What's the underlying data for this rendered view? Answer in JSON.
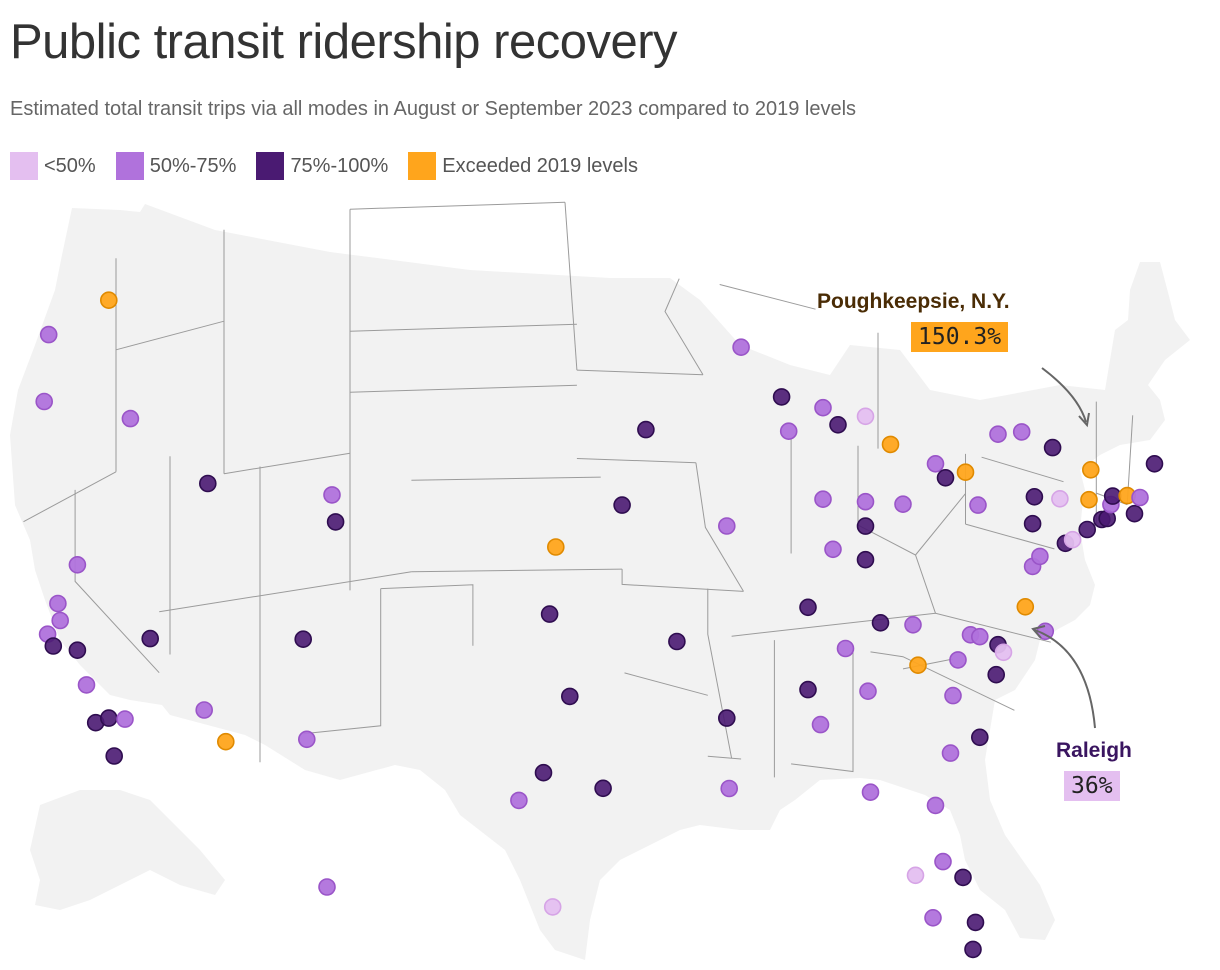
{
  "title": "Public transit ridership recovery",
  "subtitle": "Estimated total transit trips via all modes in August or September 2023 compared to 2019 levels",
  "legend": [
    {
      "label": "<50%",
      "color": "#e4bff0"
    },
    {
      "label": "50%-75%",
      "color": "#b072dc"
    },
    {
      "label": "75%-100%",
      "color": "#4a1a72"
    },
    {
      "label": "Exceeded 2019 levels",
      "color": "#ffa51c"
    }
  ],
  "colors": {
    "land": "#f2f2f2",
    "border": "#9b9b9b",
    "lt50": "#e4bff0",
    "p50_75": "#b072dc",
    "p75_100": "#4a1a72",
    "exceeded": "#ffa51c"
  },
  "callouts": {
    "poughkeepsie": {
      "name": "Poughkeepsie, N.Y.",
      "value": "150.3%"
    },
    "raleigh": {
      "name": "Raleigh",
      "value": "36%"
    }
  },
  "cities": [
    {
      "lon": -122.3,
      "lat": 47.6,
      "cat": "p50_75"
    },
    {
      "lon": -117.4,
      "lat": 47.7,
      "cat": "exceeded"
    },
    {
      "lon": -122.7,
      "lat": 45.5,
      "cat": "p50_75"
    },
    {
      "lon": -116.2,
      "lat": 43.6,
      "cat": "p50_75"
    },
    {
      "lon": -119.8,
      "lat": 39.5,
      "cat": "p50_75"
    },
    {
      "lon": -121.5,
      "lat": 38.6,
      "cat": "p50_75"
    },
    {
      "lon": -122.4,
      "lat": 37.8,
      "cat": "p50_75"
    },
    {
      "lon": -121.3,
      "lat": 38.0,
      "cat": "p50_75"
    },
    {
      "lon": -121.9,
      "lat": 37.3,
      "cat": "p75_100"
    },
    {
      "lon": -119.8,
      "lat": 36.7,
      "cat": "p75_100"
    },
    {
      "lon": -119.0,
      "lat": 35.4,
      "cat": "p50_75"
    },
    {
      "lon": -118.2,
      "lat": 34.0,
      "cat": "p75_100"
    },
    {
      "lon": -117.4,
      "lat": 34.0,
      "cat": "p75_100"
    },
    {
      "lon": -116.5,
      "lat": 33.8,
      "cat": "p50_75"
    },
    {
      "lon": -117.1,
      "lat": 32.7,
      "cat": "p75_100"
    },
    {
      "lon": -115.1,
      "lat": 36.2,
      "cat": "p75_100"
    },
    {
      "lon": -111.9,
      "lat": 40.8,
      "cat": "p75_100"
    },
    {
      "lon": -112.1,
      "lat": 33.4,
      "cat": "p50_75"
    },
    {
      "lon": -110.9,
      "lat": 32.2,
      "cat": "exceeded"
    },
    {
      "lon": -106.6,
      "lat": 35.1,
      "cat": "p75_100"
    },
    {
      "lon": -106.4,
      "lat": 31.8,
      "cat": "p50_75"
    },
    {
      "lon": -104.8,
      "lat": 38.8,
      "cat": "p75_100"
    },
    {
      "lon": -105.0,
      "lat": 39.7,
      "cat": "p50_75"
    },
    {
      "lon": -97.3,
      "lat": 37.7,
      "cat": "exceeded"
    },
    {
      "lon": -97.5,
      "lat": 35.5,
      "cat": "p75_100"
    },
    {
      "lon": -96.8,
      "lat": 32.8,
      "cat": "p75_100"
    },
    {
      "lon": -97.7,
      "lat": 30.3,
      "cat": "p75_100"
    },
    {
      "lon": -98.5,
      "lat": 29.4,
      "cat": "p50_75"
    },
    {
      "lon": -95.4,
      "lat": 29.8,
      "cat": "p75_100"
    },
    {
      "lon": -97.4,
      "lat": 25.9,
      "cat": "lt50"
    },
    {
      "lon": -94.6,
      "lat": 39.1,
      "cat": "p75_100"
    },
    {
      "lon": -93.6,
      "lat": 41.6,
      "cat": "p75_100"
    },
    {
      "lon": -92.3,
      "lat": 34.7,
      "cat": "p75_100"
    },
    {
      "lon": -90.2,
      "lat": 32.3,
      "cat": "p75_100"
    },
    {
      "lon": -90.1,
      "lat": 30.0,
      "cat": "p50_75"
    },
    {
      "lon": -90.2,
      "lat": 38.6,
      "cat": "p50_75"
    },
    {
      "lon": -89.6,
      "lat": 44.5,
      "cat": "p50_75"
    },
    {
      "lon": -87.9,
      "lat": 43.0,
      "cat": "p75_100"
    },
    {
      "lon": -87.6,
      "lat": 41.9,
      "cat": "p50_75"
    },
    {
      "lon": -86.2,
      "lat": 42.8,
      "cat": "p50_75"
    },
    {
      "lon": -85.6,
      "lat": 42.3,
      "cat": "p75_100"
    },
    {
      "lon": -84.5,
      "lat": 42.7,
      "cat": "lt50"
    },
    {
      "lon": -83.5,
      "lat": 41.9,
      "cat": "exceeded"
    },
    {
      "lon": -81.7,
      "lat": 41.5,
      "cat": "p50_75"
    },
    {
      "lon": -81.3,
      "lat": 41.1,
      "cat": "p75_100"
    },
    {
      "lon": -80.5,
      "lat": 41.4,
      "cat": "exceeded"
    },
    {
      "lon": -80.0,
      "lat": 40.4,
      "cat": "p50_75"
    },
    {
      "lon": -86.2,
      "lat": 39.8,
      "cat": "p50_75"
    },
    {
      "lon": -84.5,
      "lat": 39.9,
      "cat": "p50_75"
    },
    {
      "lon": -83.0,
      "lat": 40.0,
      "cat": "p50_75"
    },
    {
      "lon": -84.5,
      "lat": 39.1,
      "cat": "p75_100"
    },
    {
      "lon": -85.8,
      "lat": 38.2,
      "cat": "p50_75"
    },
    {
      "lon": -84.5,
      "lat": 38.0,
      "cat": "p75_100"
    },
    {
      "lon": -86.8,
      "lat": 36.2,
      "cat": "p75_100"
    },
    {
      "lon": -83.9,
      "lat": 36.0,
      "cat": "p75_100"
    },
    {
      "lon": -85.3,
      "lat": 35.0,
      "cat": "p50_75"
    },
    {
      "lon": -86.8,
      "lat": 33.5,
      "cat": "p75_100"
    },
    {
      "lon": -86.3,
      "lat": 32.4,
      "cat": "p50_75"
    },
    {
      "lon": -84.4,
      "lat": 33.7,
      "cat": "p50_75"
    },
    {
      "lon": -82.4,
      "lat": 34.8,
      "cat": "exceeded"
    },
    {
      "lon": -81.0,
      "lat": 34.0,
      "cat": "p50_75"
    },
    {
      "lon": -80.8,
      "lat": 35.2,
      "cat": "p50_75"
    },
    {
      "lon": -82.6,
      "lat": 36.1,
      "cat": "p50_75"
    },
    {
      "lon": -80.3,
      "lat": 36.1,
      "cat": "p50_75"
    },
    {
      "lon": -79.9,
      "lat": 36.1,
      "cat": "p50_75"
    },
    {
      "lon": -78.9,
      "lat": 36.0,
      "cat": "p75_100"
    },
    {
      "lon": -78.6,
      "lat": 35.8,
      "cat": "lt50"
    },
    {
      "lon": -79.0,
      "lat": 35.0,
      "cat": "p75_100"
    },
    {
      "lon": -79.9,
      "lat": 32.8,
      "cat": "p75_100"
    },
    {
      "lon": -81.1,
      "lat": 32.1,
      "cat": "p50_75"
    },
    {
      "lon": -81.7,
      "lat": 30.3,
      "cat": "p50_75"
    },
    {
      "lon": -84.3,
      "lat": 30.4,
      "cat": "p50_75"
    },
    {
      "lon": -81.4,
      "lat": 28.5,
      "cat": "p50_75"
    },
    {
      "lon": -82.5,
      "lat": 27.9,
      "cat": "lt50"
    },
    {
      "lon": -80.6,
      "lat": 28.1,
      "cat": "p75_100"
    },
    {
      "lon": -80.1,
      "lat": 26.7,
      "cat": "p75_100"
    },
    {
      "lon": -81.8,
      "lat": 26.6,
      "cat": "p50_75"
    },
    {
      "lon": -80.2,
      "lat": 25.8,
      "cat": "p75_100"
    },
    {
      "lon": -77.4,
      "lat": 37.5,
      "cat": "exceeded"
    },
    {
      "lon": -76.3,
      "lat": 36.9,
      "cat": "p50_75"
    },
    {
      "lon": -77.0,
      "lat": 38.9,
      "cat": "p50_75"
    },
    {
      "lon": -76.6,
      "lat": 39.3,
      "cat": "p50_75"
    },
    {
      "lon": -77.0,
      "lat": 40.3,
      "cat": "p75_100"
    },
    {
      "lon": -76.9,
      "lat": 41.2,
      "cat": "p75_100"
    },
    {
      "lon": -75.2,
      "lat": 40.0,
      "cat": "p75_100"
    },
    {
      "lon": -75.5,
      "lat": 41.4,
      "cat": "lt50"
    },
    {
      "lon": -74.8,
      "lat": 40.2,
      "cat": "lt50"
    },
    {
      "lon": -74.0,
      "lat": 40.7,
      "cat": "p75_100"
    },
    {
      "lon": -73.9,
      "lat": 41.7,
      "cat": "exceeded"
    },
    {
      "lon": -73.8,
      "lat": 42.7,
      "cat": "exceeded"
    },
    {
      "lon": -73.2,
      "lat": 41.2,
      "cat": "p75_100"
    },
    {
      "lon": -72.9,
      "lat": 41.3,
      "cat": "p75_100"
    },
    {
      "lon": -72.7,
      "lat": 41.8,
      "cat": "p50_75"
    },
    {
      "lon": -72.6,
      "lat": 42.1,
      "cat": "p75_100"
    },
    {
      "lon": -71.8,
      "lat": 42.3,
      "cat": "exceeded"
    },
    {
      "lon": -71.4,
      "lat": 41.8,
      "cat": "p75_100"
    },
    {
      "lon": -71.1,
      "lat": 42.4,
      "cat": "p50_75"
    },
    {
      "lon": -70.3,
      "lat": 43.7,
      "cat": "p75_100"
    },
    {
      "lon": -75.9,
      "lat": 43.0,
      "cat": "p75_100"
    },
    {
      "lon": -77.6,
      "lat": 43.2,
      "cat": "p50_75"
    },
    {
      "lon": -78.9,
      "lat": 42.9,
      "cat": "p50_75"
    },
    {
      "lon": -157.9,
      "lat": 21.3,
      "cat": "p50_75"
    }
  ]
}
